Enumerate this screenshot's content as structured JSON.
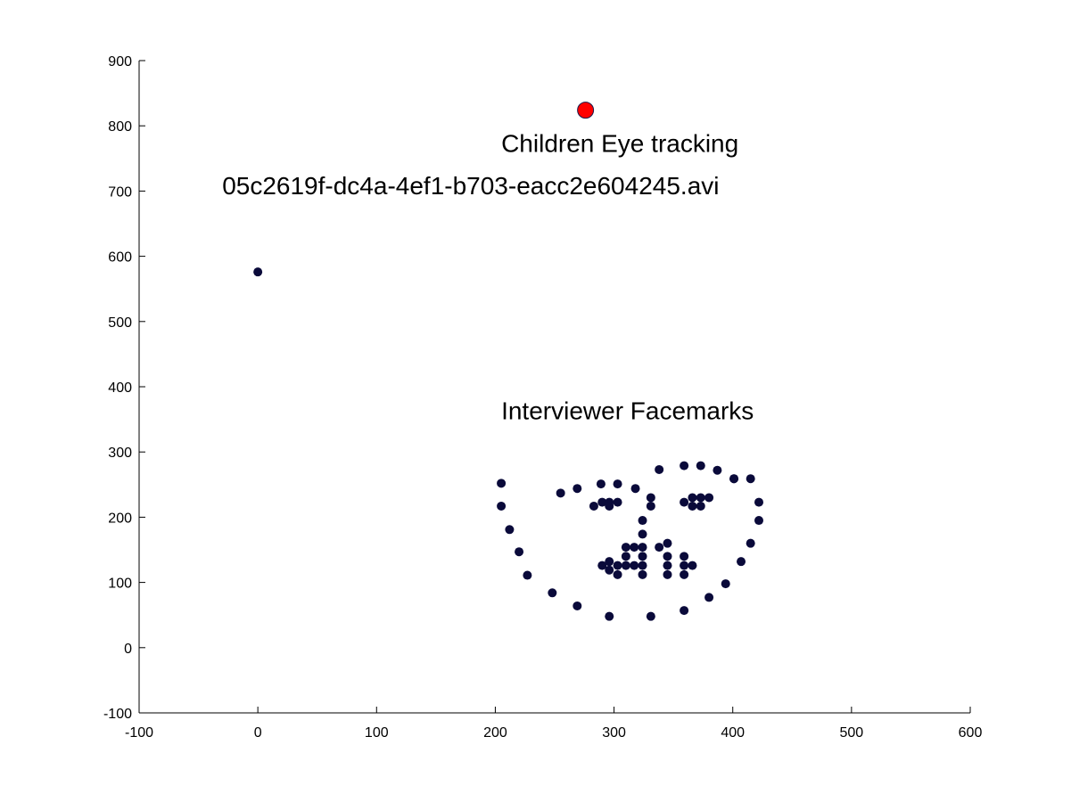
{
  "chart_data": {
    "type": "scatter",
    "xlim": [
      -100,
      600
    ],
    "ylim": [
      -100,
      900
    ],
    "xticks": [
      "-100",
      "0",
      "100",
      "200",
      "300",
      "400",
      "500",
      "600"
    ],
    "yticks": [
      "-100",
      "0",
      "100",
      "200",
      "300",
      "400",
      "500",
      "600",
      "700",
      "800",
      "900"
    ],
    "grid": false,
    "annotations": [
      {
        "text": "Children Eye tracking",
        "x": 205,
        "y": 760
      },
      {
        "text": "05c2619f-dc4a-4ef1-b703-eacc2e604245.avi",
        "x": -30,
        "y": 695
      },
      {
        "text": "Interviewer Facemarks",
        "x": 205,
        "y": 350
      }
    ],
    "series": [
      {
        "marker_color": "#0a0a3a",
        "points": [
          [
            0,
            576
          ],
          [
            205,
            252
          ],
          [
            205,
            217
          ],
          [
            212,
            181
          ],
          [
            220,
            147
          ],
          [
            227,
            111
          ],
          [
            248,
            84
          ],
          [
            269,
            64
          ],
          [
            296,
            48
          ],
          [
            331,
            48
          ],
          [
            359,
            57
          ],
          [
            380,
            77
          ],
          [
            394,
            98
          ],
          [
            407,
            132
          ],
          [
            415,
            160
          ],
          [
            422,
            195
          ],
          [
            422,
            223
          ],
          [
            415,
            259
          ],
          [
            401,
            259
          ],
          [
            255,
            237
          ],
          [
            269,
            244
          ],
          [
            289,
            251
          ],
          [
            303,
            251
          ],
          [
            318,
            244
          ],
          [
            338,
            273
          ],
          [
            359,
            279
          ],
          [
            373,
            279
          ],
          [
            387,
            272
          ],
          [
            401,
            259
          ],
          [
            283,
            217
          ],
          [
            290,
            223
          ],
          [
            296,
            223
          ],
          [
            303,
            223
          ],
          [
            296,
            217
          ],
          [
            331,
            230
          ],
          [
            331,
            217
          ],
          [
            359,
            223
          ],
          [
            366,
            230
          ],
          [
            373,
            230
          ],
          [
            380,
            230
          ],
          [
            373,
            217
          ],
          [
            366,
            217
          ],
          [
            324,
            195
          ],
          [
            324,
            174
          ],
          [
            324,
            154
          ],
          [
            324,
            140
          ],
          [
            324,
            126
          ],
          [
            324,
            112
          ],
          [
            310,
            154
          ],
          [
            317,
            154
          ],
          [
            310,
            140
          ],
          [
            317,
            126
          ],
          [
            310,
            126
          ],
          [
            338,
            154
          ],
          [
            345,
            160
          ],
          [
            345,
            140
          ],
          [
            345,
            126
          ],
          [
            345,
            112
          ],
          [
            290,
            126
          ],
          [
            296,
            132
          ],
          [
            296,
            119
          ],
          [
            303,
            126
          ],
          [
            303,
            112
          ],
          [
            359,
            140
          ],
          [
            359,
            126
          ],
          [
            359,
            112
          ],
          [
            366,
            126
          ]
        ]
      },
      {
        "marker_color": "#ff0000",
        "points": [
          [
            276,
            824
          ]
        ]
      }
    ]
  }
}
